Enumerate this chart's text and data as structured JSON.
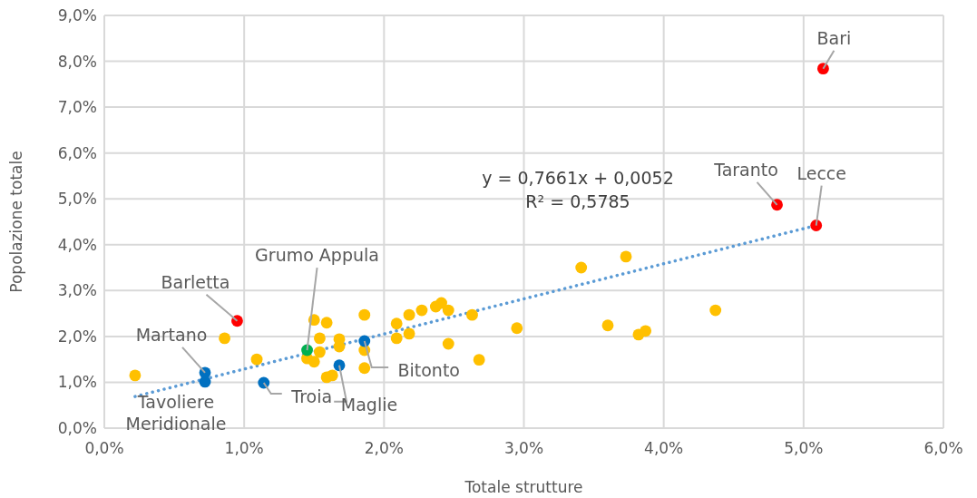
{
  "chart_data": {
    "type": "scatter",
    "xlabel": "Totale strutture",
    "ylabel": "Popolazione totale",
    "xlim": [
      0,
      6
    ],
    "ylim": [
      0,
      9
    ],
    "xticks": [
      {
        "value": 0,
        "label": "0,0%"
      },
      {
        "value": 1,
        "label": "1,0%"
      },
      {
        "value": 2,
        "label": "2,0%"
      },
      {
        "value": 3,
        "label": "3,0%"
      },
      {
        "value": 4,
        "label": "4,0%"
      },
      {
        "value": 5,
        "label": "5,0%"
      },
      {
        "value": 6,
        "label": "6,0%"
      }
    ],
    "yticks": [
      {
        "value": 0,
        "label": "0,0%"
      },
      {
        "value": 1,
        "label": "1,0%"
      },
      {
        "value": 2,
        "label": "2,0%"
      },
      {
        "value": 3,
        "label": "3,0%"
      },
      {
        "value": 4,
        "label": "4,0%"
      },
      {
        "value": 5,
        "label": "5,0%"
      },
      {
        "value": 6,
        "label": "6,0%"
      },
      {
        "value": 7,
        "label": "7,0%"
      },
      {
        "value": 8,
        "label": "8,0%"
      },
      {
        "value": 9,
        "label": "9,0%"
      }
    ],
    "grid": true,
    "marker": "circle",
    "series": [
      {
        "type": "line",
        "color": "#5b9bd5",
        "line_style": "dotted",
        "marker": "none",
        "x": [
          0.22,
          5.09
        ],
        "values": [
          0.69,
          4.42
        ]
      },
      {
        "color": "#ffc000",
        "x": [
          0.22,
          0.86,
          1.09,
          1.5,
          1.59,
          1.54,
          1.68,
          1.68,
          1.54,
          1.45,
          1.5,
          1.59,
          1.63,
          1.86,
          1.86,
          1.86,
          2.09,
          2.09,
          2.18,
          2.18,
          2.27,
          2.37,
          2.41,
          2.46,
          2.46,
          2.63,
          2.68,
          2.95,
          3.41,
          3.73,
          3.6,
          3.82,
          3.87,
          4.37
        ],
        "values": [
          1.15,
          1.96,
          1.5,
          2.36,
          2.3,
          1.96,
          1.94,
          1.78,
          1.66,
          1.52,
          1.45,
          1.11,
          1.15,
          2.47,
          1.7,
          1.31,
          2.28,
          1.96,
          2.47,
          2.06,
          2.57,
          2.65,
          2.73,
          2.57,
          1.84,
          2.47,
          1.49,
          2.18,
          3.5,
          3.74,
          2.24,
          2.04,
          2.12,
          2.57
        ]
      },
      {
        "color": "#0070c0",
        "x": [
          0.72,
          0.72,
          1.14,
          1.68,
          1.86
        ],
        "values": [
          1.21,
          1.01,
          0.99,
          1.37,
          1.9
        ]
      },
      {
        "color": "#00b050",
        "x": [
          1.45
        ],
        "values": [
          1.7
        ]
      },
      {
        "color": "#ff0000",
        "x": [
          5.14,
          4.81,
          5.09,
          0.95
        ],
        "values": [
          7.84,
          4.87,
          4.42,
          2.34
        ]
      }
    ],
    "annotations": [
      {
        "text": "Bari",
        "x": 5.14,
        "y": 7.84
      },
      {
        "text": "Taranto",
        "x": 4.81,
        "y": 4.87
      },
      {
        "text": "Lecce",
        "x": 5.09,
        "y": 4.42
      },
      {
        "text": "Barletta",
        "x": 0.95,
        "y": 2.34
      },
      {
        "text": "Grumo Appula",
        "x": 1.45,
        "y": 1.7
      },
      {
        "text": "Martano",
        "x": 0.72,
        "y": 1.21
      },
      {
        "text": "Tavoliere Meridionale",
        "x": 0.72,
        "y": 1.01
      },
      {
        "text": "Troia",
        "x": 1.14,
        "y": 0.99
      },
      {
        "text": "Maglie",
        "x": 1.68,
        "y": 1.37
      },
      {
        "text": "Bitonto",
        "x": 1.86,
        "y": 1.9
      },
      "y = 0,7661x + 0,0052",
      "R² = 0,5785"
    ]
  }
}
